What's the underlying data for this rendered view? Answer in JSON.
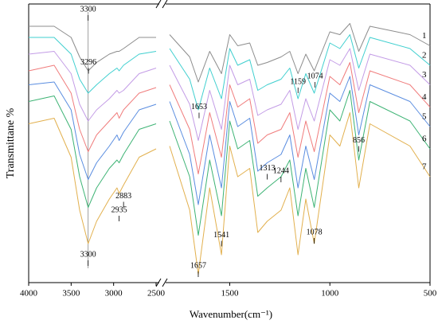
{
  "xlabel": "Wavenumber(cm⁻¹)",
  "ylabel": "Transmittane %",
  "chart_data": [
    {
      "type": "line",
      "xlim": [
        4000,
        2500
      ],
      "ylim": [
        0,
        100
      ],
      "xticks": [
        4000,
        3500,
        3000,
        2500
      ],
      "vline": 3300,
      "x": [
        4000,
        3700,
        3500,
        3400,
        3300,
        3200,
        3050,
        2960,
        2935,
        2883,
        2700,
        2500
      ],
      "series": [
        {
          "name": "1",
          "color": "#8c8c8c",
          "values": [
            92,
            92,
            88,
            81,
            76,
            79,
            82,
            83,
            83,
            84,
            88,
            88
          ]
        },
        {
          "name": "2",
          "color": "#3fcfcf",
          "values": [
            88,
            88,
            82,
            73,
            68,
            71,
            75,
            77,
            76,
            78,
            82,
            83
          ]
        },
        {
          "name": "3",
          "color": "#c39ce6",
          "values": [
            82,
            83,
            75,
            64,
            58,
            62,
            66,
            69,
            68,
            69,
            75,
            77
          ]
        },
        {
          "name": "4",
          "color": "#f07c7c",
          "values": [
            76,
            78,
            68,
            55,
            47,
            53,
            58,
            61,
            59,
            62,
            68,
            70
          ]
        },
        {
          "name": "5",
          "color": "#5a8de0",
          "values": [
            71,
            72,
            62,
            46,
            37,
            43,
            49,
            53,
            51,
            54,
            62,
            64
          ]
        },
        {
          "name": "6",
          "color": "#3db374",
          "values": [
            65,
            67,
            55,
            38,
            27,
            34,
            41,
            44,
            43,
            46,
            55,
            57
          ]
        },
        {
          "name": "7",
          "color": "#e2b04e",
          "values": [
            57,
            59,
            45,
            26,
            14,
            22,
            30,
            34,
            32,
            35,
            45,
            48
          ]
        }
      ],
      "annotations": [
        {
          "text": "3300",
          "x": 3300,
          "y": 98
        },
        {
          "text": "3296",
          "x": 3296,
          "y": 79
        },
        {
          "text": "2883",
          "x": 2883,
          "y": 31
        },
        {
          "text": "2935",
          "x": 2935,
          "y": 26
        },
        {
          "text": "3300",
          "x": 3300,
          "y": 10
        }
      ]
    },
    {
      "type": "line",
      "xlim": [
        1800,
        500
      ],
      "ylim": [
        0,
        100
      ],
      "xticks": [
        1500,
        1000,
        500
      ],
      "x": [
        1800,
        1700,
        1657,
        1600,
        1541,
        1500,
        1460,
        1400,
        1360,
        1313,
        1244,
        1200,
        1159,
        1120,
        1078,
        1000,
        950,
        900,
        856,
        800,
        600,
        500
      ],
      "series": [
        {
          "name": "1",
          "color": "#8c8c8c",
          "values": [
            89,
            81,
            72,
            83,
            75,
            89,
            85,
            86,
            78,
            79,
            81,
            83,
            75,
            82,
            76,
            90,
            89,
            93,
            83,
            92,
            89,
            85
          ]
        },
        {
          "name": "2",
          "color": "#3fcfcf",
          "values": [
            84,
            73,
            62,
            77,
            66,
            84,
            78,
            80,
            69,
            71,
            73,
            77,
            66,
            75,
            68,
            86,
            84,
            89,
            77,
            88,
            84,
            78
          ]
        },
        {
          "name": "3",
          "color": "#c39ce6",
          "values": [
            78,
            64,
            51,
            69,
            55,
            78,
            71,
            73,
            60,
            62,
            64,
            69,
            55,
            66,
            58,
            80,
            78,
            84,
            69,
            82,
            78,
            71
          ]
        },
        {
          "name": "4",
          "color": "#f07c7c",
          "values": [
            71,
            55,
            39,
            61,
            45,
            71,
            63,
            66,
            50,
            53,
            55,
            61,
            45,
            58,
            47,
            74,
            71,
            79,
            61,
            76,
            71,
            63
          ]
        },
        {
          "name": "5",
          "color": "#5a8de0",
          "values": [
            65,
            46,
            28,
            53,
            34,
            65,
            56,
            59,
            40,
            43,
            46,
            53,
            34,
            49,
            37,
            68,
            65,
            74,
            53,
            71,
            65,
            56
          ]
        },
        {
          "name": "6",
          "color": "#3db374",
          "values": [
            58,
            38,
            17,
            44,
            24,
            58,
            48,
            51,
            31,
            34,
            38,
            44,
            24,
            41,
            27,
            62,
            58,
            69,
            44,
            65,
            58,
            48
          ]
        },
        {
          "name": "7",
          "color": "#e2b04e",
          "values": [
            49,
            26,
            3,
            34,
            10,
            49,
            38,
            41,
            18,
            22,
            26,
            34,
            10,
            30,
            14,
            53,
            49,
            61,
            34,
            57,
            49,
            38
          ]
        }
      ],
      "annotations": [
        {
          "text": "1653",
          "x": 1653,
          "y": 63
        },
        {
          "text": "1159",
          "x": 1159,
          "y": 72
        },
        {
          "text": "1074",
          "x": 1074,
          "y": 74
        },
        {
          "text": "1313",
          "x": 1313,
          "y": 41
        },
        {
          "text": "1244",
          "x": 1244,
          "y": 40
        },
        {
          "text": "856",
          "x": 856,
          "y": 51
        },
        {
          "text": "1541",
          "x": 1541,
          "y": 17
        },
        {
          "text": "1657",
          "x": 1657,
          "y": 6
        },
        {
          "text": "1078",
          "x": 1078,
          "y": 18
        }
      ]
    }
  ]
}
